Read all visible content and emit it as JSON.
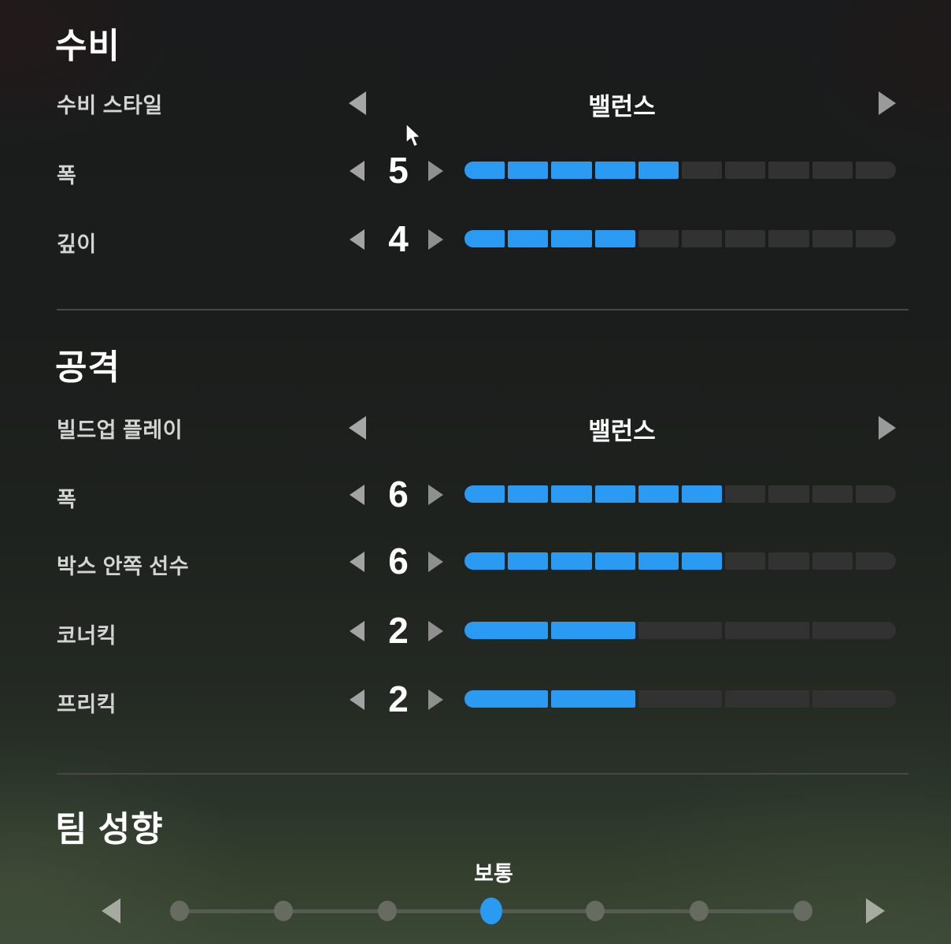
{
  "colors": {
    "accent_blue": "#2b9af2",
    "segment_off": "#313231",
    "arrow_gray": "#9e9e9e",
    "divider": "#474747",
    "dot_gray": "#676b61",
    "text_white": "#ffffff",
    "label_gray": "#d4d4d4"
  },
  "icons": {
    "decrease": "left-triangle",
    "increase": "right-triangle",
    "cursor": "mouse-pointer"
  },
  "sections": {
    "defense": {
      "title": "수비",
      "rows": {
        "style": {
          "type": "choice",
          "label": "수비 스타일",
          "value": "밸런스"
        },
        "width": {
          "type": "slider",
          "label": "폭",
          "value": 5,
          "max": 10
        },
        "depth": {
          "type": "slider",
          "label": "깊이",
          "value": 4,
          "max": 10
        }
      }
    },
    "attack": {
      "title": "공격",
      "rows": {
        "buildup": {
          "type": "choice",
          "label": "빌드업 플레이",
          "value": "밸런스"
        },
        "width": {
          "type": "slider",
          "label": "폭",
          "value": 6,
          "max": 10
        },
        "box_players": {
          "type": "slider",
          "label": "박스 안쪽 선수",
          "value": 6,
          "max": 10
        },
        "corner_kick": {
          "type": "slider",
          "label": "코너킥",
          "value": 2,
          "max": 5
        },
        "free_kick": {
          "type": "slider",
          "label": "프리킥",
          "value": 2,
          "max": 5
        }
      }
    },
    "mentality": {
      "title": "팀 성향",
      "dot_slider": {
        "value_label": "보통",
        "positions": 7,
        "selected_index": 3
      }
    }
  }
}
